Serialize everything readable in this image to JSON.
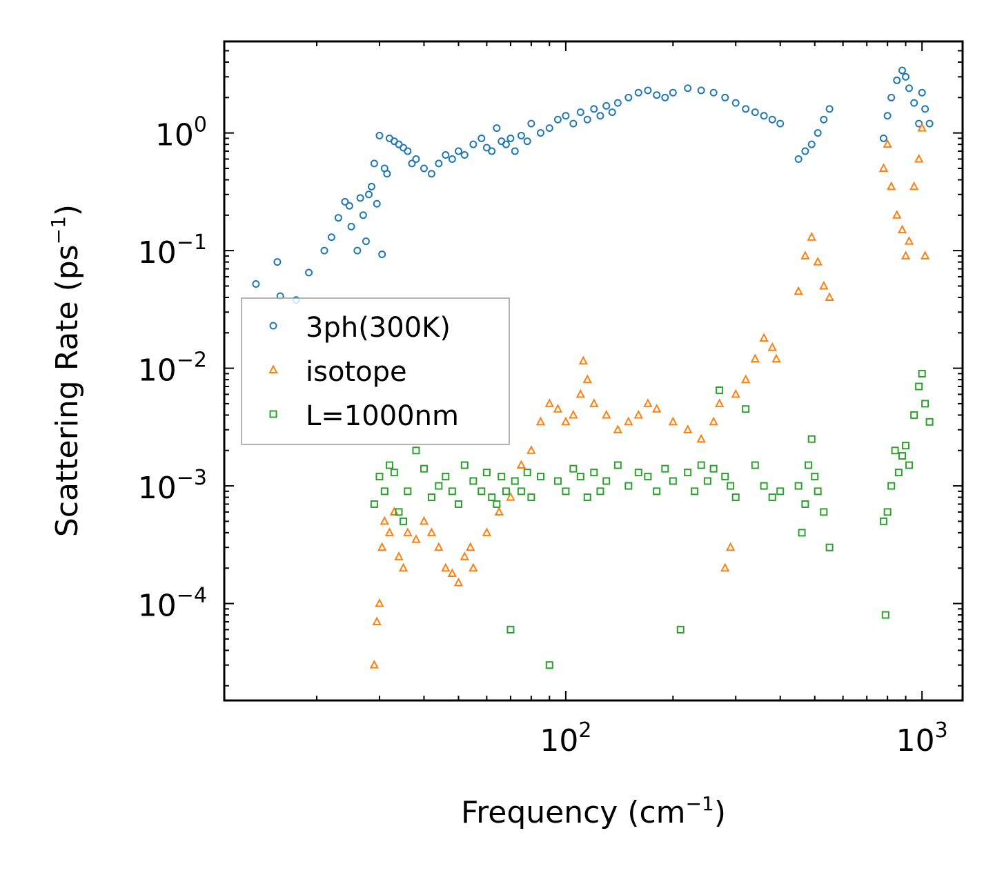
{
  "chart_data": {
    "type": "scatter",
    "xscale": "log",
    "yscale": "log",
    "xlim": [
      11,
      1300
    ],
    "ylim": [
      1.5e-05,
      6
    ],
    "xlabel": {
      "base": "Frequency (cm",
      "sup": "−1",
      "end": ")"
    },
    "ylabel": {
      "base": "Scattering Rate (ps",
      "sup": "−1",
      "end": ")"
    },
    "xticks": [
      {
        "value": 100,
        "base": "10",
        "exp": "2"
      },
      {
        "value": 1000,
        "base": "10",
        "exp": "3"
      }
    ],
    "yticks": [
      {
        "value": 1,
        "base": "10",
        "exp": "0"
      },
      {
        "value": 0.1,
        "base": "10",
        "exp": "−1"
      },
      {
        "value": 0.01,
        "base": "10",
        "exp": "−2"
      },
      {
        "value": 0.001,
        "base": "10",
        "exp": "−3"
      },
      {
        "value": 0.0001,
        "base": "10",
        "exp": "−4"
      }
    ],
    "legend_position": "center-left",
    "series": [
      {
        "name": "3ph(300K)",
        "marker": "circle",
        "color": "#1f77b4",
        "x": [
          13.5,
          15.5,
          15.8,
          17.5,
          19,
          21,
          22,
          23,
          24,
          24.7,
          25,
          26,
          26.5,
          27,
          27.5,
          28,
          28.5,
          29,
          29.5,
          30,
          30.5,
          31,
          31.5,
          32,
          33,
          34,
          35,
          36,
          37,
          38,
          40,
          42,
          44,
          46,
          48,
          50,
          52,
          55,
          58,
          60,
          62,
          64,
          66,
          68,
          70,
          72,
          75,
          78,
          80,
          85,
          90,
          95,
          100,
          105,
          110,
          115,
          120,
          125,
          130,
          135,
          140,
          150,
          160,
          170,
          180,
          190,
          200,
          220,
          240,
          260,
          280,
          300,
          320,
          340,
          360,
          380,
          400,
          450,
          470,
          490,
          510,
          530,
          550,
          780,
          800,
          820,
          850,
          880,
          900,
          920,
          950,
          980,
          1000,
          1020,
          1050
        ],
        "y": [
          0.052,
          0.08,
          0.041,
          0.038,
          0.065,
          0.1,
          0.13,
          0.19,
          0.26,
          0.24,
          0.16,
          0.1,
          0.28,
          0.2,
          0.12,
          0.3,
          0.35,
          0.55,
          0.25,
          0.95,
          0.093,
          0.5,
          0.45,
          0.9,
          0.85,
          0.8,
          0.75,
          0.7,
          0.55,
          0.6,
          0.5,
          0.45,
          0.55,
          0.65,
          0.6,
          0.7,
          0.65,
          0.8,
          0.9,
          0.75,
          0.7,
          1.1,
          0.85,
          0.8,
          0.9,
          0.7,
          0.95,
          0.85,
          1.2,
          1.0,
          1.1,
          1.3,
          1.4,
          1.2,
          1.5,
          1.3,
          1.6,
          1.4,
          1.7,
          1.5,
          1.8,
          2.0,
          2.2,
          2.3,
          2.1,
          2.0,
          2.2,
          2.4,
          2.3,
          2.2,
          2.0,
          1.8,
          1.6,
          1.5,
          1.4,
          1.3,
          1.2,
          0.6,
          0.7,
          0.8,
          1.0,
          1.3,
          1.6,
          0.9,
          1.4,
          2.0,
          2.8,
          3.4,
          3.0,
          2.4,
          1.8,
          1.2,
          2.2,
          1.6,
          1.2
        ]
      },
      {
        "name": "isotope",
        "marker": "triangle",
        "color": "#ff7f0e",
        "x": [
          29,
          29.5,
          30,
          30.5,
          31,
          32,
          33,
          34,
          35,
          36,
          38,
          40,
          42,
          44,
          46,
          48,
          50,
          52,
          54,
          55,
          60,
          65,
          70,
          75,
          80,
          85,
          90,
          95,
          100,
          105,
          110,
          112,
          115,
          120,
          130,
          140,
          150,
          160,
          170,
          180,
          200,
          220,
          240,
          260,
          270,
          280,
          290,
          300,
          320,
          340,
          360,
          380,
          390,
          450,
          470,
          490,
          510,
          530,
          550,
          780,
          800,
          820,
          850,
          880,
          900,
          920,
          950,
          980,
          1000,
          1020
        ],
        "y": [
          3e-05,
          7e-05,
          0.0001,
          0.0003,
          0.0005,
          0.0004,
          0.0006,
          0.00025,
          0.0002,
          0.0004,
          0.00035,
          0.0005,
          0.0004,
          0.0003,
          0.0002,
          0.00018,
          0.00015,
          0.00025,
          0.0003,
          0.0002,
          0.0004,
          0.0006,
          0.0008,
          0.0015,
          0.002,
          0.0035,
          0.005,
          0.0045,
          0.0035,
          0.004,
          0.006,
          0.0115,
          0.008,
          0.005,
          0.004,
          0.003,
          0.0035,
          0.004,
          0.005,
          0.0045,
          0.0035,
          0.003,
          0.0025,
          0.0035,
          0.005,
          0.0002,
          0.0003,
          0.006,
          0.008,
          0.012,
          0.018,
          0.015,
          0.012,
          0.045,
          0.09,
          0.13,
          0.08,
          0.05,
          0.04,
          0.5,
          0.8,
          0.35,
          0.2,
          0.15,
          0.09,
          0.12,
          0.35,
          0.6,
          1.1,
          0.09
        ]
      },
      {
        "name": "L=1000nm",
        "marker": "square",
        "color": "#2ca02c",
        "x": [
          29,
          30,
          31,
          32,
          33,
          34,
          35,
          36,
          38,
          40,
          42,
          44,
          46,
          48,
          50,
          52,
          55,
          58,
          60,
          62,
          64,
          66,
          68,
          70,
          72,
          75,
          78,
          80,
          85,
          90,
          95,
          100,
          105,
          110,
          115,
          120,
          125,
          130,
          140,
          150,
          160,
          170,
          180,
          190,
          200,
          210,
          220,
          230,
          240,
          250,
          260,
          270,
          280,
          290,
          300,
          320,
          340,
          360,
          380,
          400,
          450,
          460,
          470,
          480,
          490,
          500,
          510,
          530,
          550,
          780,
          790,
          800,
          820,
          840,
          860,
          880,
          900,
          920,
          950,
          980,
          1000,
          1020,
          1050
        ],
        "y": [
          0.0007,
          0.0012,
          0.0009,
          0.0015,
          0.0013,
          0.0006,
          0.0005,
          0.0009,
          0.002,
          0.0014,
          0.0008,
          0.001,
          0.0012,
          0.0009,
          0.0007,
          0.0015,
          0.0011,
          0.0009,
          0.0013,
          0.0008,
          0.0007,
          0.0012,
          0.0009,
          6e-05,
          0.0011,
          0.0009,
          0.0013,
          0.0008,
          0.0012,
          3e-05,
          0.0011,
          0.0009,
          0.0014,
          0.0012,
          0.0008,
          0.0013,
          0.0009,
          0.0011,
          0.0015,
          0.001,
          0.0013,
          0.0012,
          0.0009,
          0.0014,
          0.0011,
          6e-05,
          0.0013,
          0.0009,
          0.0015,
          0.0011,
          0.0014,
          0.0065,
          0.0012,
          0.001,
          0.0008,
          0.0045,
          0.0015,
          0.001,
          0.0008,
          0.0009,
          0.001,
          0.0004,
          0.0007,
          0.0015,
          0.0025,
          0.0012,
          0.0009,
          0.0006,
          0.0003,
          0.0005,
          8e-05,
          0.0006,
          0.001,
          0.002,
          0.0013,
          0.0018,
          0.0022,
          0.0015,
          0.004,
          0.007,
          0.009,
          0.005,
          0.0035
        ]
      }
    ]
  }
}
